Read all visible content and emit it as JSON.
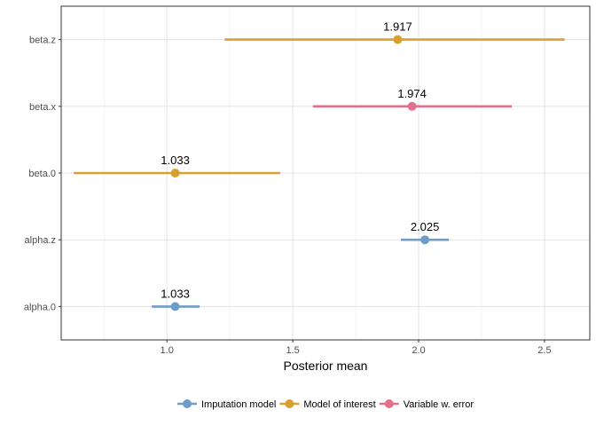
{
  "chart_data": {
    "type": "scatter",
    "subtype": "point-range",
    "xlabel": "Posterior mean",
    "ylabel": "",
    "title": "",
    "xlim": [
      0.58,
      2.68
    ],
    "x_ticks": [
      1.0,
      1.5,
      2.0,
      2.5
    ],
    "x_tick_labels": [
      "1.0",
      "1.5",
      "2.0",
      "2.5"
    ],
    "categories": [
      "alpha.0",
      "alpha.z",
      "beta.0",
      "beta.x",
      "beta.z"
    ],
    "grid": true,
    "legend_position": "bottom",
    "series": [
      {
        "name": "Imputation model",
        "color": "#6f9cc8",
        "points": [
          {
            "category": "alpha.0",
            "mean": 1.033,
            "lower": 0.94,
            "upper": 1.13,
            "label": "1.033"
          },
          {
            "category": "alpha.z",
            "mean": 2.025,
            "lower": 1.93,
            "upper": 2.12,
            "label": "2.025"
          }
        ]
      },
      {
        "name": "Model of interest",
        "color": "#d8a030",
        "points": [
          {
            "category": "beta.0",
            "mean": 1.033,
            "lower": 0.63,
            "upper": 1.45,
            "label": "1.033"
          },
          {
            "category": "beta.z",
            "mean": 1.917,
            "lower": 1.23,
            "upper": 2.58,
            "label": "1.917"
          }
        ]
      },
      {
        "name": "Variable w. error",
        "color": "#e46f8c",
        "points": [
          {
            "category": "beta.x",
            "mean": 1.974,
            "lower": 1.58,
            "upper": 2.37,
            "label": "1.974"
          }
        ]
      }
    ]
  }
}
